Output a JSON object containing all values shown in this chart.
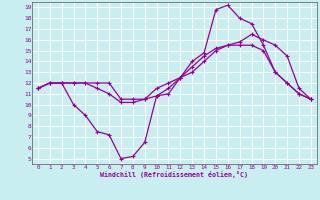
{
  "xlabel": "Windchill (Refroidissement éolien,°C)",
  "background_color": "#c8eef0",
  "grid_color": "#ffffff",
  "line_color": "#990099",
  "xlim": [
    -0.5,
    23.5
  ],
  "ylim": [
    4.5,
    19.5
  ],
  "xticks": [
    0,
    1,
    2,
    3,
    4,
    5,
    6,
    7,
    8,
    9,
    10,
    11,
    12,
    13,
    14,
    15,
    16,
    17,
    18,
    19,
    20,
    21,
    22,
    23
  ],
  "yticks": [
    5,
    6,
    7,
    8,
    9,
    10,
    11,
    12,
    13,
    14,
    15,
    16,
    17,
    18,
    19
  ],
  "lines": [
    {
      "x": [
        0,
        1,
        2,
        3,
        4,
        5,
        6,
        7,
        8,
        9,
        10,
        11,
        12,
        13,
        14,
        15,
        16,
        17,
        18,
        19,
        20,
        21,
        22,
        23
      ],
      "y": [
        11.5,
        12.0,
        12.0,
        10.0,
        9.0,
        7.5,
        7.2,
        5.0,
        5.2,
        6.5,
        10.8,
        11.0,
        12.5,
        14.0,
        14.8,
        18.8,
        19.2,
        18.0,
        17.5,
        15.5,
        13.0,
        12.0,
        11.0,
        10.5
      ]
    },
    {
      "x": [
        0,
        1,
        2,
        3,
        4,
        5,
        6,
        7,
        8,
        9,
        10,
        11,
        12,
        13,
        14,
        15,
        16,
        17,
        18,
        19,
        20,
        21,
        22,
        23
      ],
      "y": [
        11.5,
        12.0,
        12.0,
        12.0,
        12.0,
        11.5,
        11.0,
        10.2,
        10.2,
        10.5,
        11.5,
        12.0,
        12.5,
        13.5,
        14.5,
        15.2,
        15.5,
        15.8,
        16.5,
        16.0,
        15.5,
        14.5,
        11.5,
        10.5
      ]
    },
    {
      "x": [
        0,
        1,
        2,
        3,
        4,
        5,
        6,
        7,
        8,
        9,
        10,
        11,
        12,
        13,
        14,
        15,
        16,
        17,
        18,
        19,
        20,
        21,
        22,
        23
      ],
      "y": [
        11.5,
        12.0,
        12.0,
        12.0,
        12.0,
        12.0,
        12.0,
        10.5,
        10.5,
        10.5,
        10.8,
        11.5,
        12.5,
        13.0,
        14.0,
        15.0,
        15.5,
        15.5,
        15.5,
        15.0,
        13.0,
        12.0,
        11.0,
        10.5
      ]
    }
  ]
}
